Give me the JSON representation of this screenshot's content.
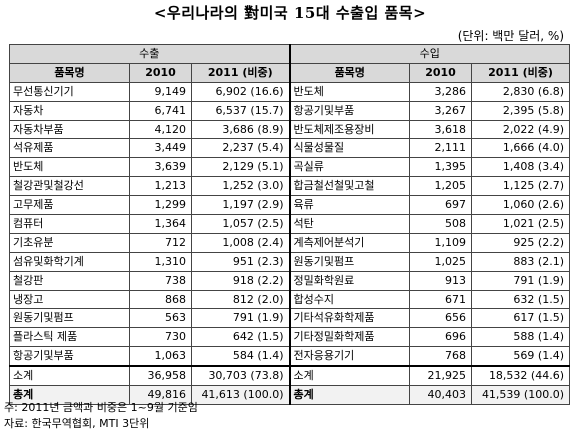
{
  "title": "<우리나라의 對미국 15대 수출입 품목>",
  "unit": "(단위: 백만 달러, %)",
  "header": {
    "export": "수출",
    "import": "수입",
    "col_item": "품목명",
    "col_2010": "2010",
    "col_2011": "2011 (비중)"
  },
  "exports": [
    {
      "name": "무선통신기기",
      "v2010": "9,149",
      "v2011": "6,902 (16.6)"
    },
    {
      "name": "자동차",
      "v2010": "6,741",
      "v2011": "6,537 (15.7)"
    },
    {
      "name": "자동차부품",
      "v2010": "4,120",
      "v2011": "3,686 (8.9)"
    },
    {
      "name": "석유제품",
      "v2010": "3,449",
      "v2011": "2,237 (5.4)"
    },
    {
      "name": "반도체",
      "v2010": "3,639",
      "v2011": "2,129 (5.1)"
    },
    {
      "name": "철강관및철강선",
      "v2010": "1,213",
      "v2011": "1,252 (3.0)"
    },
    {
      "name": "고무제품",
      "v2010": "1,299",
      "v2011": "1,197 (2.9)"
    },
    {
      "name": "컴퓨터",
      "v2010": "1,364",
      "v2011": "1,057 (2.5)"
    },
    {
      "name": "기초유분",
      "v2010": "712",
      "v2011": "1,008 (2.4)"
    },
    {
      "name": "섬유및화학기계",
      "v2010": "1,310",
      "v2011": "951 (2.3)"
    },
    {
      "name": "철강판",
      "v2010": "738",
      "v2011": "918 (2.2)"
    },
    {
      "name": "냉장고",
      "v2010": "868",
      "v2011": "812 (2.0)"
    },
    {
      "name": "원동기및펌프",
      "v2010": "563",
      "v2011": "791 (1.9)"
    },
    {
      "name": "플라스틱 제품",
      "v2010": "730",
      "v2011": "642 (1.5)"
    },
    {
      "name": "항공기및부품",
      "v2010": "1,063",
      "v2011": "584 (1.4)"
    }
  ],
  "imports": [
    {
      "name": "반도체",
      "v2010": "3,286",
      "v2011": "2,830 (6.8)"
    },
    {
      "name": "항공기및부품",
      "v2010": "3,267",
      "v2011": "2,395 (5.8)"
    },
    {
      "name": "반도체제조용장비",
      "v2010": "3,618",
      "v2011": "2,022 (4.9)"
    },
    {
      "name": "식물성물질",
      "v2010": "2,111",
      "v2011": "1,666 (4.0)"
    },
    {
      "name": "곡실류",
      "v2010": "1,395",
      "v2011": "1,408 (3.4)"
    },
    {
      "name": "합금철선철및고철",
      "v2010": "1,205",
      "v2011": "1,125 (2.7)"
    },
    {
      "name": "육류",
      "v2010": "697",
      "v2011": "1,060 (2.6)"
    },
    {
      "name": "석탄",
      "v2010": "508",
      "v2011": "1,021 (2.5)"
    },
    {
      "name": "계측제어분석기",
      "v2010": "1,109",
      "v2011": "925 (2.2)"
    },
    {
      "name": "원동기및펌프",
      "v2010": "1,025",
      "v2011": "883 (2.1)"
    },
    {
      "name": "정밀화학원료",
      "v2010": "913",
      "v2011": "791 (1.9)"
    },
    {
      "name": "합성수지",
      "v2010": "671",
      "v2011": "632 (1.5)"
    },
    {
      "name": "기타석유화학제품",
      "v2010": "656",
      "v2011": "617 (1.5)"
    },
    {
      "name": "기타정밀화학제품",
      "v2010": "696",
      "v2011": "588 (1.4)"
    },
    {
      "name": "전자응용기기",
      "v2010": "768",
      "v2011": "569 (1.4)"
    }
  ],
  "subtotal": {
    "label": "소계",
    "export_2010": "36,958",
    "export_2011": "30,703 (73.8)",
    "import_2010": "21,925",
    "import_2011": "18,532 (44.6)"
  },
  "total": {
    "label": "총계",
    "export_2010": "49,816",
    "export_2011": "41,613 (100.0)",
    "import_2010": "40,403",
    "import_2011": "41,539 (100.0)"
  },
  "notes": [
    "주: 2011년 금액과 비중은 1~9월 기준임",
    "자료: 한국무역협회, MTI 3단위"
  ]
}
